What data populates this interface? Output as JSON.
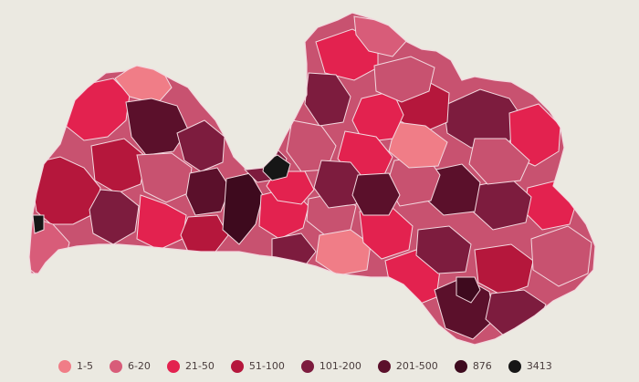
{
  "map": {
    "legend": [
      {
        "label": "1-5",
        "color": "#f07d87"
      },
      {
        "label": "6-20",
        "color": "#d85c79"
      },
      {
        "label": "21-50",
        "color": "#e3224f"
      },
      {
        "label": "51-100",
        "color": "#b5173c"
      },
      {
        "label": "101-200",
        "color": "#7d1c3e"
      },
      {
        "label": "201-500",
        "color": "#5b102b"
      },
      {
        "label": "876",
        "color": "#3e0a1e"
      },
      {
        "label": "3413",
        "color": "#161616"
      }
    ],
    "colors": {
      "background": "#ebe9e1",
      "border": "#f3d8df"
    }
  }
}
